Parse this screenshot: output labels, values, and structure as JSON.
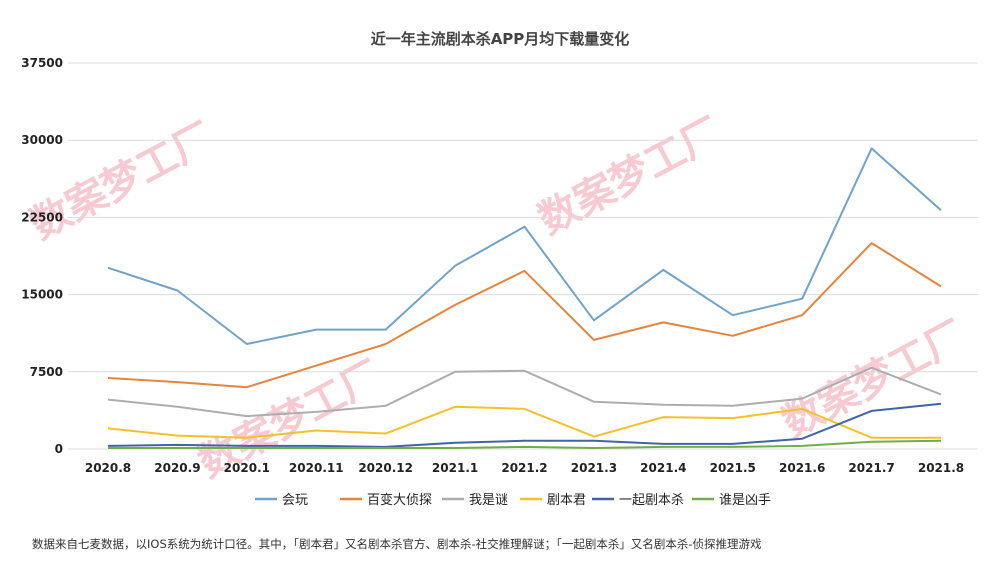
{
  "chart_data": {
    "type": "line",
    "title": "近一年主流剧本杀APP月均下载量变化",
    "categories": [
      "2020.8",
      "2020.9",
      "2020.1",
      "2020.11",
      "2020.12",
      "2021.1",
      "2021.2",
      "2021.3",
      "2021.4",
      "2021.5",
      "2021.6",
      "2021.7",
      "2021.8"
    ],
    "ylim": [
      0,
      37500
    ],
    "yticks": [
      0,
      7500,
      15000,
      22500,
      30000,
      37500
    ],
    "grid": true,
    "legend_position": "bottom",
    "series": [
      {
        "name": "会玩",
        "color": "#6fa3c9",
        "values": [
          17600,
          15400,
          10200,
          11600,
          11600,
          17800,
          21600,
          12500,
          17400,
          13000,
          14600,
          29200,
          23200
        ]
      },
      {
        "name": "百变大侦探",
        "color": "#e4853e",
        "values": [
          6900,
          6500,
          6000,
          8100,
          10200,
          14000,
          17300,
          10600,
          12300,
          11000,
          13000,
          20000,
          15800
        ]
      },
      {
        "name": "我是谜",
        "color": "#adadad",
        "values": [
          4800,
          4100,
          3200,
          3600,
          4200,
          7500,
          7600,
          4600,
          4300,
          4200,
          4900,
          7900,
          5300
        ]
      },
      {
        "name": "剧本君",
        "color": "#f5c02a",
        "values": [
          2000,
          1300,
          1100,
          1800,
          1500,
          4100,
          3900,
          1200,
          3100,
          3000,
          3900,
          1100,
          1100
        ]
      },
      {
        "name": "一起剧本杀",
        "color": "#3f64a8",
        "values": [
          300,
          400,
          300,
          300,
          200,
          600,
          800,
          800,
          500,
          500,
          1000,
          3700,
          4400
        ]
      },
      {
        "name": "谁是凶手",
        "color": "#72ad4b",
        "values": [
          100,
          100,
          100,
          100,
          100,
          100,
          200,
          100,
          200,
          200,
          300,
          700,
          800
        ]
      }
    ]
  },
  "watermark": "数案梦工厂",
  "footnote": "数据来自七麦数据，以IOS系统为统计口径。其中，「剧本君」又名剧本杀官方、剧本杀-社交推理解谜；「一起剧本杀」又名剧本杀-侦探推理游戏"
}
